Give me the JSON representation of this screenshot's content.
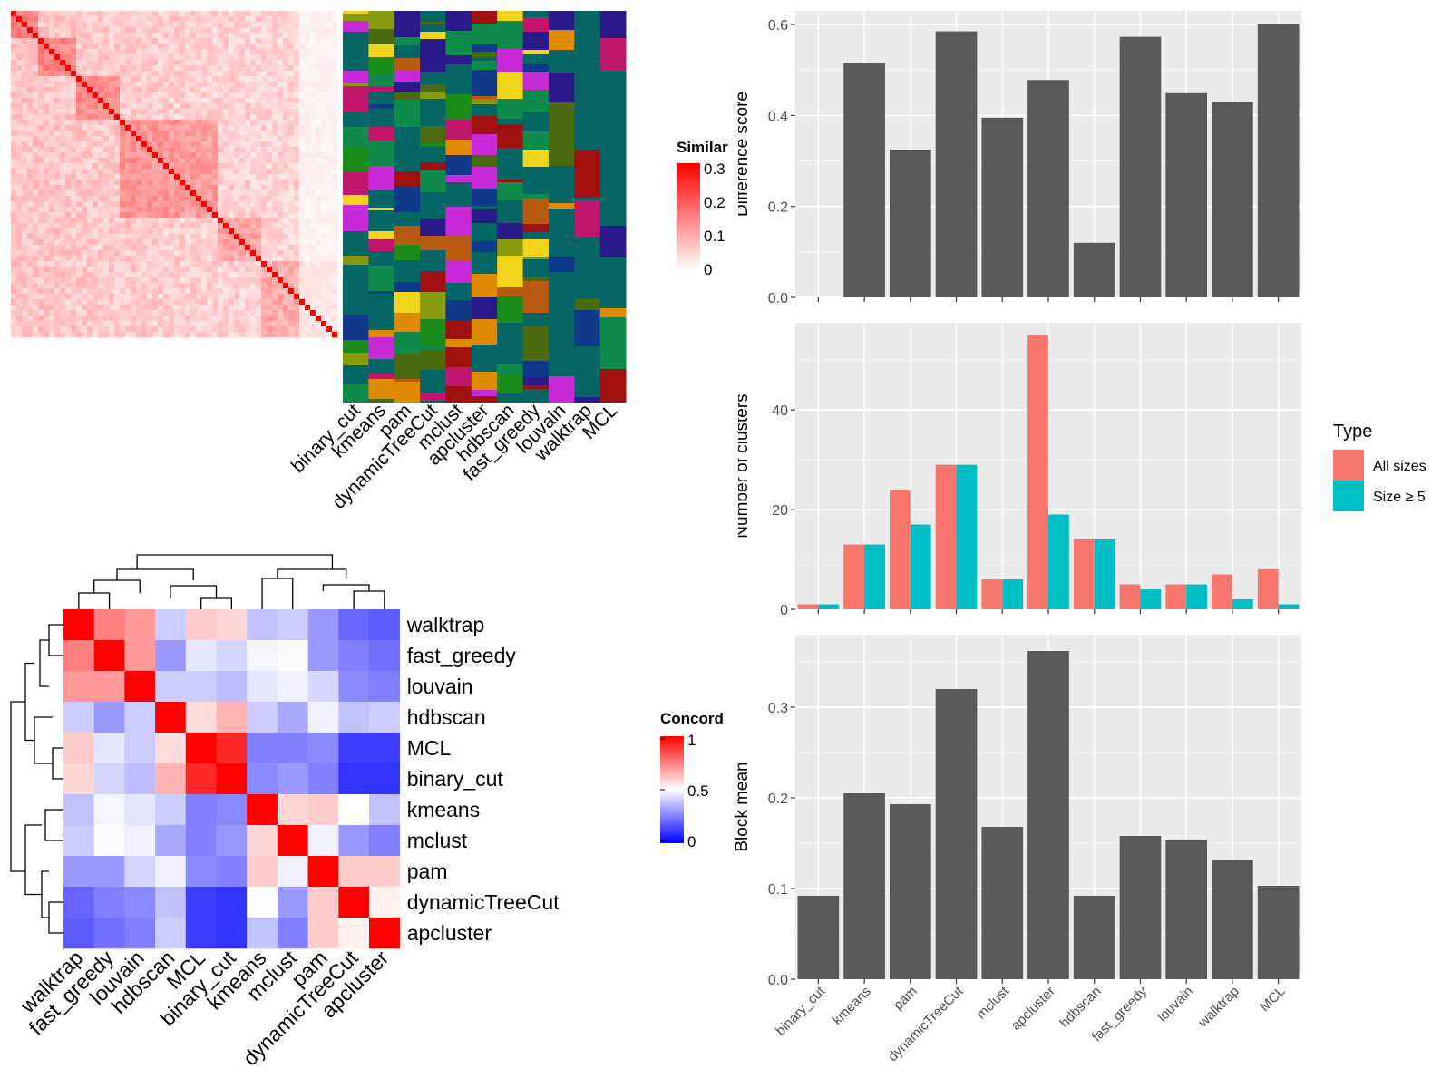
{
  "colors": {
    "heat_high": "#ff0000",
    "heat_low": "#ffffff",
    "conc_high": "#ff0000",
    "conc_mid": "#ffffff",
    "conc_low": "#0000ff",
    "bar": "#595959",
    "panel_bg": "#ebebeb",
    "all_sizes": "#f8766d",
    "size5": "#00bfc4"
  },
  "similarity_heatmap": {
    "legend_title": "Similar",
    "legend_ticks": [
      "0.3",
      "0.2",
      "0.1",
      "0"
    ]
  },
  "membership": {
    "methods": [
      "binary_cut",
      "kmeans",
      "pam",
      "dynamicTreeCut",
      "mclust",
      "apcluster",
      "hdbscan",
      "fast_greedy",
      "louvain",
      "walktrap",
      "MCL"
    ]
  },
  "concordance": {
    "legend_title": "Concord",
    "legend_ticks": [
      "1",
      "0.5",
      "0"
    ]
  },
  "chart_data": [
    {
      "type": "bar",
      "ylabel": "Difference score",
      "categories": [
        "binary_cut",
        "kmeans",
        "pam",
        "dynamicTreeCut",
        "mclust",
        "apcluster",
        "hdbscan",
        "fast_greedy",
        "louvain",
        "walktrap",
        "MCL"
      ],
      "values": [
        0,
        0.515,
        0.325,
        0.585,
        0.395,
        0.478,
        0.12,
        0.573,
        0.449,
        0.43,
        0.6
      ],
      "ylim": [
        0,
        0.63
      ],
      "yticks": [
        "0.0",
        "0.2",
        "0.4",
        "0.6"
      ],
      "grid": true
    },
    {
      "type": "bar",
      "ylabel": "Number of clusters",
      "categories": [
        "binary_cut",
        "kmeans",
        "pam",
        "dynamicTreeCut",
        "mclust",
        "apcluster",
        "hdbscan",
        "fast_greedy",
        "louvain",
        "walktrap",
        "MCL"
      ],
      "series": [
        {
          "name": "All sizes",
          "values": [
            1,
            13,
            24,
            29,
            6,
            55,
            14,
            5,
            5,
            7,
            8
          ]
        },
        {
          "name": "Size ≥ 5",
          "values": [
            1,
            13,
            17,
            29,
            6,
            19,
            14,
            4,
            5,
            2,
            1
          ]
        }
      ],
      "legend_title": "Type",
      "legend": "right",
      "ylim": [
        0,
        57.5
      ],
      "yticks": [
        "0",
        "20",
        "40"
      ],
      "grid": true
    },
    {
      "type": "bar",
      "ylabel": "Block mean",
      "categories": [
        "binary_cut",
        "kmeans",
        "pam",
        "dynamicTreeCut",
        "mclust",
        "apcluster",
        "hdbscan",
        "fast_greedy",
        "louvain",
        "walktrap",
        "MCL"
      ],
      "values": [
        0.092,
        0.205,
        0.193,
        0.32,
        0.168,
        0.362,
        0.092,
        0.158,
        0.153,
        0.132,
        0.103
      ],
      "ylim": [
        0,
        0.38
      ],
      "yticks": [
        "0.0",
        "0.1",
        "0.2",
        "0.3"
      ],
      "grid": true
    },
    {
      "type": "heatmap",
      "title": "",
      "rows": [
        "walktrap",
        "fast_greedy",
        "louvain",
        "hdbscan",
        "MCL",
        "binary_cut",
        "kmeans",
        "mclust",
        "pam",
        "dynamicTreeCut",
        "apcluster"
      ],
      "columns": [
        "walktrap",
        "fast_greedy",
        "louvain",
        "hdbscan",
        "MCL",
        "binary_cut",
        "kmeans",
        "mclust",
        "pam",
        "dynamicTreeCut",
        "apcluster"
      ],
      "values": [
        [
          1.0,
          0.75,
          0.7,
          0.4,
          0.6,
          0.58,
          0.38,
          0.4,
          0.3,
          0.2,
          0.18
        ],
        [
          0.75,
          1.0,
          0.7,
          0.3,
          0.45,
          0.42,
          0.48,
          0.49,
          0.3,
          0.25,
          0.22
        ],
        [
          0.7,
          0.7,
          1.0,
          0.4,
          0.4,
          0.37,
          0.45,
          0.47,
          0.42,
          0.27,
          0.25
        ],
        [
          0.4,
          0.3,
          0.4,
          1.0,
          0.57,
          0.65,
          0.4,
          0.33,
          0.47,
          0.38,
          0.4
        ],
        [
          0.6,
          0.45,
          0.4,
          0.57,
          1.0,
          0.92,
          0.25,
          0.25,
          0.27,
          0.12,
          0.12
        ],
        [
          0.58,
          0.42,
          0.37,
          0.65,
          0.92,
          1.0,
          0.27,
          0.3,
          0.25,
          0.1,
          0.1
        ],
        [
          0.38,
          0.48,
          0.45,
          0.4,
          0.25,
          0.27,
          1.0,
          0.58,
          0.6,
          0.5,
          0.38
        ],
        [
          0.4,
          0.49,
          0.47,
          0.33,
          0.25,
          0.3,
          0.58,
          1.0,
          0.47,
          0.3,
          0.25
        ],
        [
          0.3,
          0.3,
          0.42,
          0.47,
          0.27,
          0.25,
          0.6,
          0.47,
          1.0,
          0.6,
          0.6
        ],
        [
          0.2,
          0.25,
          0.27,
          0.38,
          0.12,
          0.1,
          0.5,
          0.3,
          0.6,
          1.0,
          0.53
        ],
        [
          0.18,
          0.22,
          0.25,
          0.4,
          0.12,
          0.1,
          0.38,
          0.25,
          0.6,
          0.53,
          1.0
        ]
      ],
      "colorscale": [
        "#0000ff",
        "#ffffff",
        "#ff0000"
      ],
      "range": [
        0,
        1
      ]
    }
  ]
}
